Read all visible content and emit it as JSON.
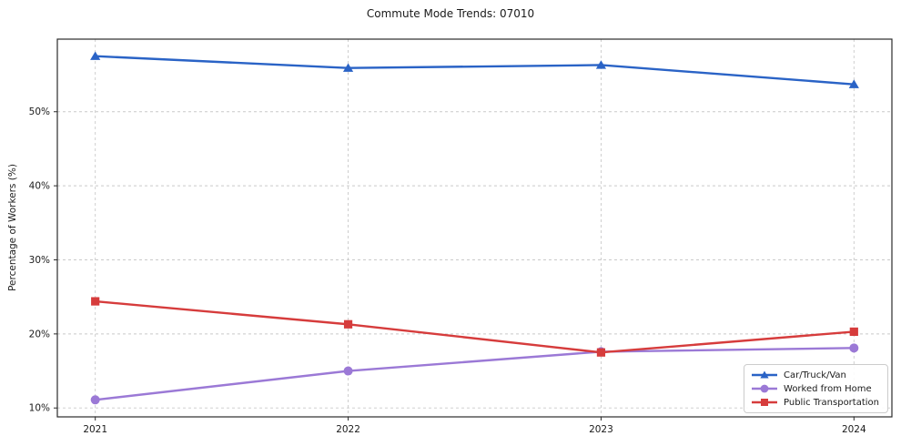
{
  "chart_data": {
    "type": "line",
    "title": "Commute Mode Trends: 07010",
    "xlabel": "",
    "ylabel": "Percentage of Workers (%)",
    "x": [
      2021,
      2022,
      2023,
      2024
    ],
    "x_tick_labels": [
      "2021",
      "2022",
      "2023",
      "2024"
    ],
    "y_ticks": [
      10,
      20,
      30,
      40,
      50
    ],
    "y_tick_labels": [
      "10%",
      "20%",
      "30%",
      "40%",
      "50%"
    ],
    "xlim": [
      2020.85,
      2024.15
    ],
    "ylim": [
      8.8,
      59.8
    ],
    "grid": "dashed both axes",
    "legend_position": "lower right",
    "series": [
      {
        "name": "Car/Truck/Van",
        "color": "#2a63c6",
        "marker": "triangle",
        "values": [
          57.5,
          55.9,
          56.3,
          53.7
        ]
      },
      {
        "name": "Worked from Home",
        "color": "#9b79d6",
        "marker": "circle",
        "values": [
          11.1,
          15.0,
          17.6,
          18.1
        ]
      },
      {
        "name": "Public Transportation",
        "color": "#d63c3c",
        "marker": "square",
        "values": [
          24.4,
          21.3,
          17.5,
          20.3
        ]
      }
    ],
    "colors": {
      "grid": "#c9c9c9",
      "axis_frame": "#2b2b2b",
      "background": "#ffffff"
    }
  }
}
